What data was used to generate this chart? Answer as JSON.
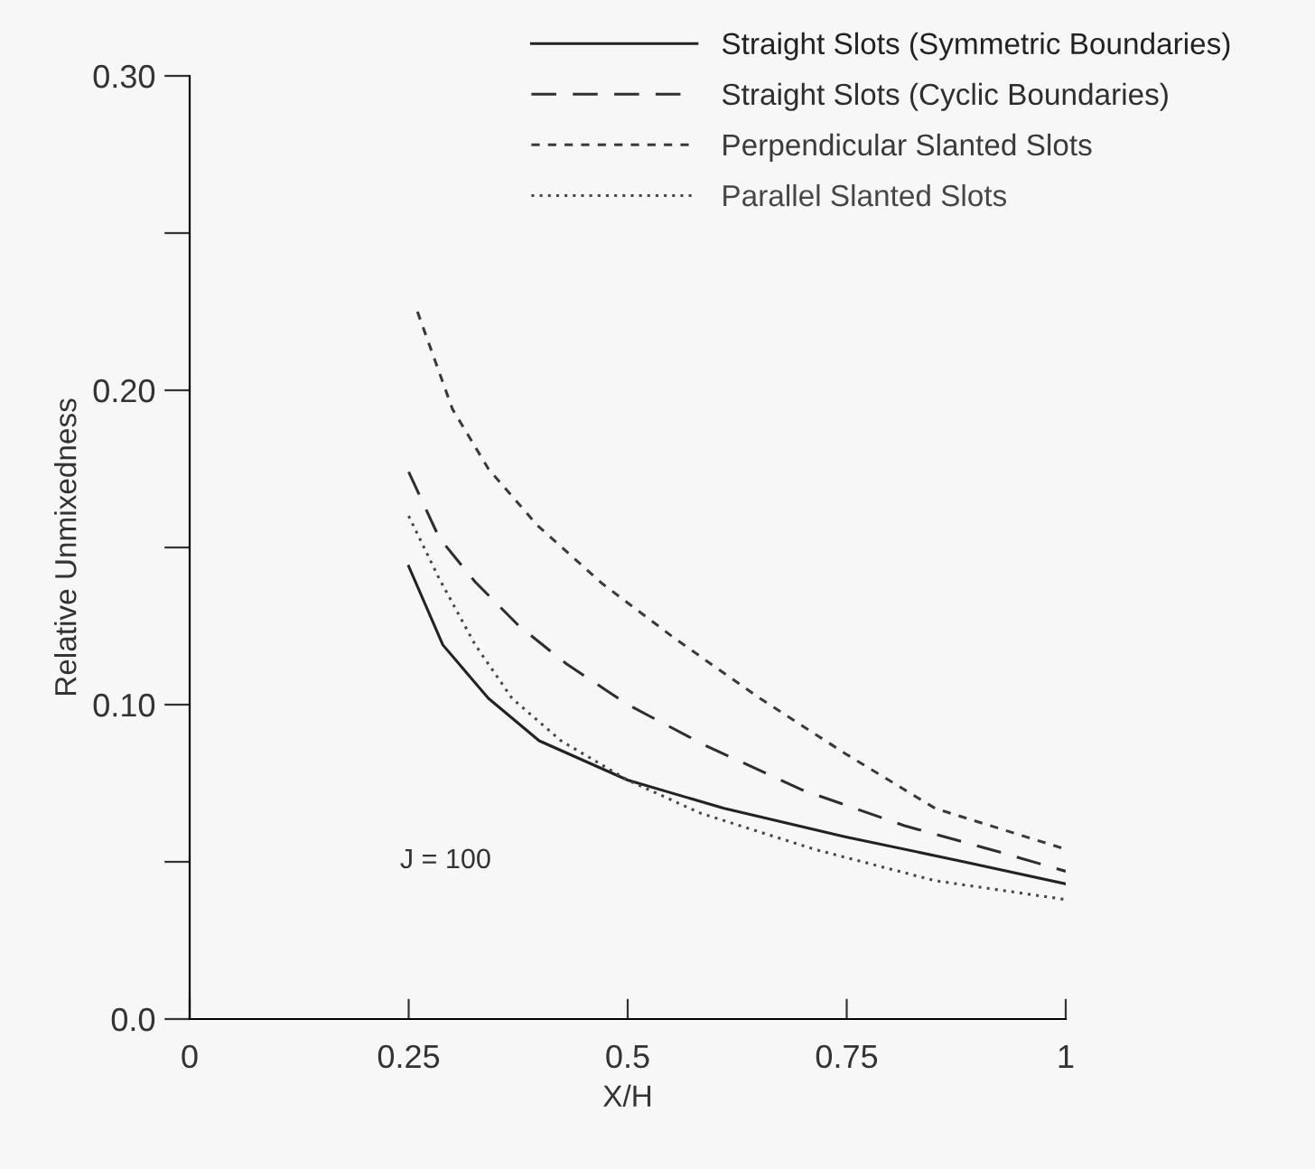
{
  "chart_data": {
    "type": "line",
    "xlabel": "X/H",
    "ylabel": "Relative Unmixedness",
    "annotations": [
      "J = 100"
    ],
    "xlim": [
      0,
      1
    ],
    "ylim": [
      0,
      0.3
    ],
    "xticks": [
      0,
      0.25,
      0.5,
      0.75,
      1
    ],
    "yticks": [
      {
        "value": 0,
        "label": "0.0"
      },
      {
        "value": 0.05,
        "label": null
      },
      {
        "value": 0.1,
        "label": "0.10"
      },
      {
        "value": 0.15,
        "label": null
      },
      {
        "value": 0.2,
        "label": "0.20"
      },
      {
        "value": 0.25,
        "label": null
      },
      {
        "value": 0.3,
        "label": "0.30"
      }
    ],
    "grid": false,
    "legend": "top right",
    "marker": "none",
    "series": [
      {
        "name": "Straight Slots (Symmetric Boundaries)",
        "color": "#222222",
        "line_style": "solid",
        "x": [
          0.25,
          0.289,
          0.341,
          0.399,
          0.5,
          0.61,
          0.748,
          0.884,
          1.0
        ],
        "values": [
          0.144,
          0.119,
          0.102,
          0.0885,
          0.076,
          0.067,
          0.058,
          0.05,
          0.043
        ]
      },
      {
        "name": "Straight Slots (Cyclic Boundaries)",
        "color": "#2e2e2e",
        "line_style": "longdash",
        "x": [
          0.25,
          0.285,
          0.326,
          0.376,
          0.43,
          0.5,
          0.589,
          0.698,
          0.816,
          0.926,
          1.0
        ],
        "values": [
          0.174,
          0.153,
          0.139,
          0.125,
          0.113,
          0.1,
          0.087,
          0.073,
          0.0615,
          0.053,
          0.047
        ]
      },
      {
        "name": "Perpendicular Slanted Slots",
        "color": "#3a3a3a",
        "line_style": "dashed",
        "x": [
          0.26,
          0.3,
          0.341,
          0.397,
          0.471,
          0.554,
          0.651,
          0.748,
          0.851,
          1.0
        ],
        "values": [
          0.225,
          0.194,
          0.175,
          0.157,
          0.1385,
          0.121,
          0.102,
          0.0845,
          0.067,
          0.054
        ]
      },
      {
        "name": "Parallel Slanted Slots",
        "color": "#464646",
        "line_style": "dotted",
        "x": [
          0.25,
          0.285,
          0.326,
          0.368,
          0.424,
          0.5,
          0.583,
          0.713,
          0.851,
          1.0
        ],
        "values": [
          0.16,
          0.14,
          0.119,
          0.102,
          0.0885,
          0.076,
          0.0655,
          0.054,
          0.044,
          0.038
        ]
      }
    ]
  }
}
